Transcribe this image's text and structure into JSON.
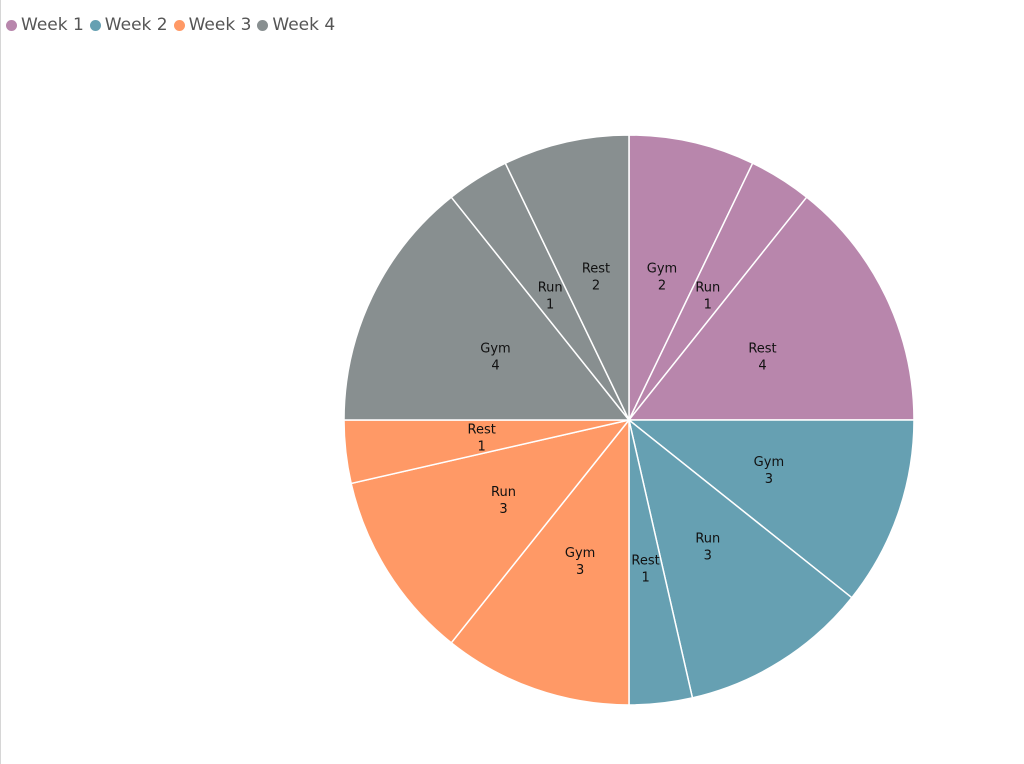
{
  "chart_data": {
    "type": "pie",
    "title": "",
    "legend": {
      "placement": "top-left",
      "entries": [
        {
          "name": "Week 1",
          "color": "#B886AC"
        },
        {
          "name": "Week 2",
          "color": "#66A0B2"
        },
        {
          "name": "Week 3",
          "color": "#FF9966"
        },
        {
          "name": "Week 4",
          "color": "#888F90"
        }
      ]
    },
    "slices": [
      {
        "group": "Week 1",
        "category": "Gym",
        "value": 2,
        "color": "#B886AC"
      },
      {
        "group": "Week 1",
        "category": "Run",
        "value": 1,
        "color": "#B886AC"
      },
      {
        "group": "Week 1",
        "category": "Rest",
        "value": 4,
        "color": "#B886AC"
      },
      {
        "group": "Week 2",
        "category": "Gym",
        "value": 3,
        "color": "#66A0B2"
      },
      {
        "group": "Week 2",
        "category": "Run",
        "value": 3,
        "color": "#66A0B2"
      },
      {
        "group": "Week 2",
        "category": "Rest",
        "value": 1,
        "color": "#66A0B2"
      },
      {
        "group": "Week 3",
        "category": "Gym",
        "value": 3,
        "color": "#FF9966"
      },
      {
        "group": "Week 3",
        "category": "Run",
        "value": 3,
        "color": "#FF9966"
      },
      {
        "group": "Week 3",
        "category": "Rest",
        "value": 1,
        "color": "#FF9966"
      },
      {
        "group": "Week 4",
        "category": "Gym",
        "value": 4,
        "color": "#888F90"
      },
      {
        "group": "Week 4",
        "category": "Run",
        "value": 1,
        "color": "#888F90"
      },
      {
        "group": "Week 4",
        "category": "Rest",
        "value": 2,
        "color": "#888F90"
      }
    ]
  }
}
